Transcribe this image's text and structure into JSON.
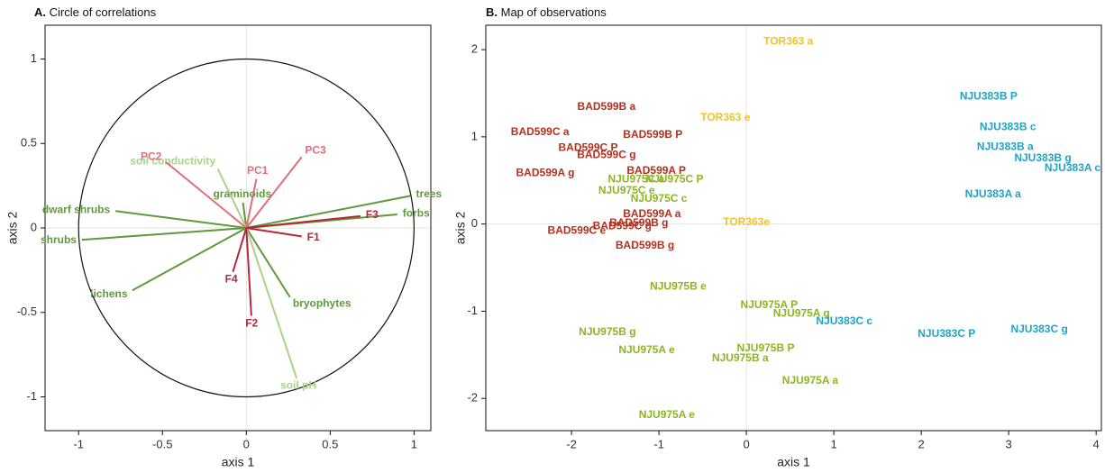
{
  "chart_data": [
    {
      "type": "vector",
      "panel": "A.",
      "title": "Circle of correlations",
      "xlabel": "axis 1",
      "ylabel": "axis 2",
      "xlim": [
        -1.2,
        1.1
      ],
      "ylim": [
        -1.2,
        1.2
      ],
      "xticks": [
        -1,
        -0.5,
        0,
        0.5,
        1
      ],
      "yticks": [
        -1,
        -0.5,
        0,
        0.5,
        1
      ],
      "zero_lines": true,
      "unit_circle": true,
      "series": [
        {
          "color": "#5e9a3c",
          "labels": [
            "trees",
            "forbs",
            "dwarf shrubs",
            "shrubs",
            "lichens",
            "bryophytes",
            "graminoids"
          ],
          "x": [
            0.98,
            0.9,
            -0.78,
            -0.98,
            -0.68,
            0.26,
            -0.02
          ],
          "y": [
            0.19,
            0.08,
            0.1,
            -0.07,
            -0.37,
            -0.41,
            0.15
          ]
        },
        {
          "color": "#a8d38a",
          "labels": [
            "soil conductivity",
            "soil pH"
          ],
          "x": [
            -0.17,
            0.3
          ],
          "y": [
            0.35,
            -0.89
          ]
        },
        {
          "color": "#e36c7c",
          "labels": [
            "PC2",
            "PC1",
            "PC3"
          ],
          "x": [
            -0.48,
            0.06,
            0.33
          ],
          "y": [
            0.39,
            0.29,
            0.42
          ]
        },
        {
          "color": "#b5273a",
          "labels": [
            "F3",
            "F1",
            "F4",
            "F2"
          ],
          "x": [
            0.68,
            0.33,
            -0.08,
            0.03
          ],
          "y": [
            0.07,
            -0.05,
            -0.26,
            -0.52
          ]
        }
      ]
    },
    {
      "type": "text-scatter",
      "panel": "B.",
      "title": "Map of observations",
      "xlabel": "axis 1",
      "ylabel": "axis 2",
      "xlim": [
        -2.98,
        4.06
      ],
      "ylim": [
        -2.37,
        2.28
      ],
      "xticks": [
        -2,
        -1,
        0,
        1,
        2,
        3,
        4
      ],
      "yticks": [
        -2,
        -1,
        0,
        1,
        2
      ],
      "zero_lines": true,
      "unit_circle": false,
      "series": [
        {
          "color": "#b3301f",
          "labels": [
            "BAD599B a",
            "BAD599C a",
            "BAD599B P",
            "BAD599C P",
            "BAD599C g",
            "BAD599A P",
            "BAD599A g",
            "BAD599A a",
            "BAD599C g",
            "BAD599B g",
            "BAD599C e",
            "BAD599B g"
          ],
          "x": [
            -1.6,
            -2.36,
            -1.07,
            -1.81,
            -1.6,
            -1.03,
            -2.3,
            -1.08,
            -1.42,
            -1.23,
            -1.94,
            -1.16
          ],
          "y": [
            1.34,
            1.05,
            1.02,
            0.87,
            0.79,
            0.61,
            0.58,
            0.11,
            -0.03,
            0.01,
            -0.08,
            -0.25
          ]
        },
        {
          "color": "#8db422",
          "labels": [
            "NJU975C a",
            "NJU975C P",
            "NJU975C e",
            "NJU975C c",
            "NJU975B e",
            "NJU975A P",
            "NJU975A g",
            "NJU975B g",
            "NJU975B P",
            "NJU975A e",
            "NJU975B a",
            "NJU975A a",
            "NJU975A e"
          ],
          "x": [
            -1.26,
            -0.82,
            -1.37,
            -1.0,
            -0.78,
            0.26,
            0.63,
            -1.59,
            0.22,
            -1.14,
            -0.07,
            0.73,
            -0.91
          ],
          "y": [
            0.51,
            0.51,
            0.38,
            0.29,
            -0.72,
            -0.93,
            -1.03,
            -1.24,
            -1.43,
            -1.45,
            -1.54,
            -1.8,
            -2.19
          ]
        },
        {
          "color": "#efc22f",
          "labels": [
            "TOR363 a",
            "TOR363 e",
            "TOR363e"
          ],
          "x": [
            0.48,
            -0.24,
            0.0
          ],
          "y": [
            2.09,
            1.22,
            0.02
          ]
        },
        {
          "color": "#20a3c5",
          "labels": [
            "NJU383B P",
            "NJU383B c",
            "NJU383B a",
            "NJU383B g",
            "NJU383A c",
            "NJU383A a",
            "NJU383C c",
            "NJU383C P",
            "NJU383C g"
          ],
          "x": [
            2.77,
            2.99,
            2.96,
            3.39,
            3.73,
            2.82,
            1.12,
            2.29,
            3.35
          ],
          "y": [
            1.46,
            1.11,
            0.88,
            0.75,
            0.64,
            0.34,
            -1.12,
            -1.26,
            -1.21
          ]
        }
      ]
    }
  ]
}
